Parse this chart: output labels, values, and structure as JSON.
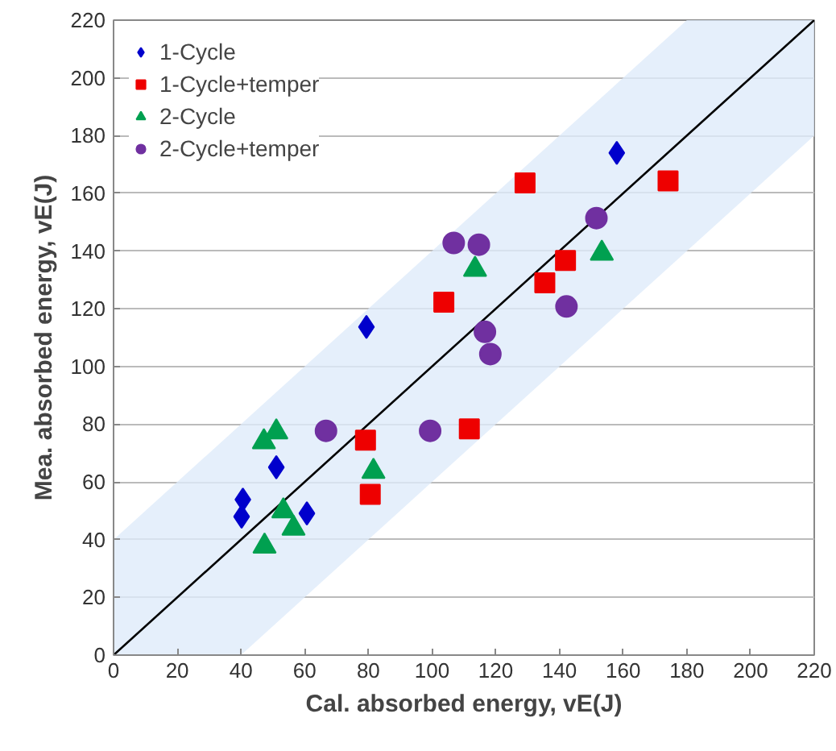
{
  "chart_data": {
    "type": "scatter",
    "xlabel": "Cal. absorbed energy, vE(J)",
    "ylabel": "Mea. absorbed energy, vE(J)",
    "xlim": [
      0,
      220
    ],
    "ylim": [
      0,
      220
    ],
    "xticks": [
      0,
      20,
      40,
      60,
      80,
      100,
      120,
      140,
      160,
      180,
      200,
      220
    ],
    "yticks": [
      0,
      20,
      40,
      60,
      80,
      100,
      120,
      140,
      160,
      180,
      200,
      220
    ],
    "grid": "y",
    "legend": "top left",
    "series": [
      {
        "type": "line",
        "color": "#000000",
        "x": [
          0,
          40,
          180,
          220
        ],
        "values": [
          0,
          40,
          180,
          220
        ],
        "lower": [
          0,
          0,
          140,
          180
        ],
        "upper": [
          40,
          80,
          220,
          220
        ]
      },
      {
        "name": "1-Cycle",
        "color": "#0000cc",
        "marker": "diamond",
        "x": [
          40.6,
          40.2,
          51.1,
          60.7,
          79.4,
          158
        ],
        "values": [
          53.9,
          48.0,
          65.1,
          49.1,
          113.7,
          174
        ]
      },
      {
        "name": "1-Cycle+temper",
        "color": "#ee0000",
        "marker": "square",
        "x": [
          79.1,
          80.6,
          111.7,
          103.7,
          129.2,
          135.4,
          141.9,
          174.1
        ],
        "values": [
          74.5,
          55.7,
          78.4,
          122.3,
          163.6,
          129,
          136.7,
          164.3
        ]
      },
      {
        "name": "2-Cycle",
        "color": "#00a050",
        "marker": "triangle",
        "x": [
          47.2,
          51.1,
          81.6,
          53.3,
          56.5,
          47.4,
          113.5,
          153.3
        ],
        "values": [
          73.9,
          77.3,
          63.6,
          49.9,
          43.9,
          37.7,
          133.6,
          139.2
        ]
      },
      {
        "name": "2-Cycle+temper",
        "color": "#7030a0",
        "marker": "circle",
        "x": [
          66.7,
          99.4,
          106.8,
          114.7,
          151.6,
          142.2,
          116.6,
          118.3
        ],
        "values": [
          77.7,
          77.7,
          142.8,
          142.2,
          151.4,
          120.8,
          112,
          104.3
        ]
      }
    ]
  }
}
